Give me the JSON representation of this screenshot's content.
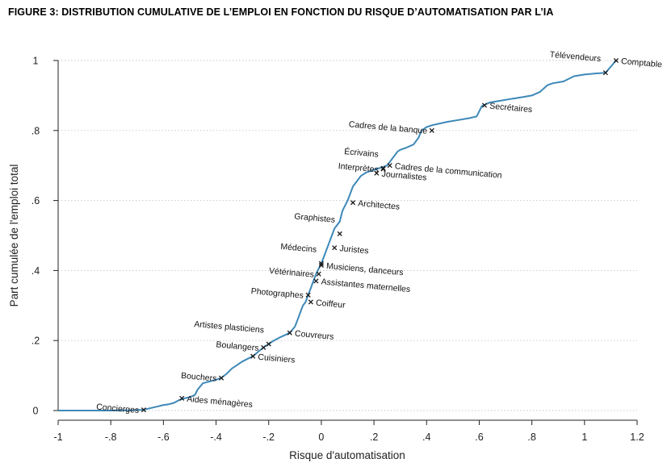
{
  "figure_title": "FIGURE 3: DISTRIBUTION CUMULATIVE DE L’EMPLOI EN FONCTION DU RISQUE D’AUTOMATISATION PAR L’IA",
  "colors": {
    "line": "#3d88b8",
    "grid": "#c8c8c8",
    "axis": "#222222",
    "marker": "#1a1a1a"
  },
  "chart_data": {
    "type": "line",
    "title": "FIGURE 3: DISTRIBUTION CUMULATIVE DE L’EMPLOI EN FONCTION DU RISQUE D’AUTOMATISATION PAR L’IA",
    "xlabel": "Risque d'automatisation",
    "ylabel": "Part cumulée de l'emploi total",
    "xlim": [
      -1,
      1.2
    ],
    "ylim": [
      0,
      1
    ],
    "x_ticks": [
      {
        "value": -1,
        "label": "-1"
      },
      {
        "value": -0.8,
        "label": "-.8"
      },
      {
        "value": -0.6,
        "label": "-.6"
      },
      {
        "value": -0.4,
        "label": "-.4"
      },
      {
        "value": -0.2,
        "label": "-.2"
      },
      {
        "value": 0,
        "label": "0"
      },
      {
        "value": 0.2,
        "label": ".2"
      },
      {
        "value": 0.4,
        "label": ".4"
      },
      {
        "value": 0.6,
        "label": ".6"
      },
      {
        "value": 0.8,
        "label": ".8"
      },
      {
        "value": 1,
        "label": "1"
      },
      {
        "value": 1.2,
        "label": "1.2"
      }
    ],
    "y_ticks": [
      {
        "value": 0,
        "label": "0"
      },
      {
        "value": 0.2,
        "label": ".2"
      },
      {
        "value": 0.4,
        "label": ".4"
      },
      {
        "value": 0.6,
        "label": ".6"
      },
      {
        "value": 0.8,
        "label": ".8"
      },
      {
        "value": 1,
        "label": "1"
      }
    ],
    "grid": "horizontal dotted",
    "series": [
      {
        "x": [
          -1,
          -0.9,
          -0.8,
          -0.72,
          -0.68,
          -0.66,
          -0.62,
          -0.6,
          -0.58,
          -0.56,
          -0.54,
          -0.52,
          -0.5,
          -0.48,
          -0.47,
          -0.45,
          -0.43,
          -0.42,
          -0.4,
          -0.38,
          -0.36,
          -0.34,
          -0.32,
          -0.3,
          -0.28,
          -0.26,
          -0.24,
          -0.22,
          -0.2,
          -0.18,
          -0.16,
          -0.14,
          -0.12,
          -0.1,
          -0.09,
          -0.08,
          -0.07,
          -0.06,
          -0.05,
          -0.04,
          -0.03,
          -0.02,
          -0.01,
          0,
          0.01,
          0.02,
          0.03,
          0.04,
          0.05,
          0.06,
          0.07,
          0.08,
          0.09,
          0.1,
          0.11,
          0.12,
          0.13,
          0.14,
          0.15,
          0.17,
          0.19,
          0.21,
          0.23,
          0.25,
          0.27,
          0.29,
          0.3,
          0.32,
          0.35,
          0.37,
          0.38,
          0.4,
          0.42,
          0.45,
          0.48,
          0.52,
          0.56,
          0.59,
          0.61,
          0.64,
          0.68,
          0.72,
          0.76,
          0.8,
          0.83,
          0.86,
          0.88,
          0.92,
          0.96,
          1,
          1.04,
          1.08,
          1.12
        ],
        "y": [
          0,
          0,
          0,
          0.001,
          0.002,
          0.005,
          0.012,
          0.016,
          0.018,
          0.022,
          0.03,
          0.035,
          0.038,
          0.045,
          0.06,
          0.078,
          0.082,
          0.084,
          0.088,
          0.093,
          0.105,
          0.12,
          0.13,
          0.14,
          0.148,
          0.155,
          0.168,
          0.18,
          0.19,
          0.2,
          0.208,
          0.215,
          0.222,
          0.24,
          0.26,
          0.28,
          0.3,
          0.31,
          0.33,
          0.35,
          0.37,
          0.39,
          0.405,
          0.42,
          0.44,
          0.46,
          0.48,
          0.5,
          0.52,
          0.53,
          0.54,
          0.57,
          0.585,
          0.6,
          0.62,
          0.64,
          0.65,
          0.66,
          0.67,
          0.68,
          0.685,
          0.69,
          0.695,
          0.7,
          0.72,
          0.74,
          0.745,
          0.75,
          0.76,
          0.78,
          0.8,
          0.81,
          0.815,
          0.82,
          0.825,
          0.83,
          0.835,
          0.84,
          0.87,
          0.88,
          0.885,
          0.89,
          0.895,
          0.9,
          0.91,
          0.93,
          0.935,
          0.94,
          0.955,
          0.96,
          0.963,
          0.965,
          1.0
        ]
      }
    ],
    "annotations": [
      {
        "label": "Concierges",
        "x": -0.675,
        "y": 0.002,
        "side": "left",
        "rot": 5
      },
      {
        "label": "Aides ménagères",
        "x": -0.53,
        "y": 0.035,
        "side": "right",
        "rot": 5
      },
      {
        "label": "Bouchers",
        "x": -0.38,
        "y": 0.093,
        "side": "left",
        "rot": 5
      },
      {
        "label": "Cuisiniers",
        "x": -0.26,
        "y": 0.155,
        "side": "right",
        "rot": 5
      },
      {
        "label": "Boulangers",
        "x": -0.22,
        "y": 0.18,
        "side": "left",
        "rot": 5
      },
      {
        "label": "Artistes plasticiens",
        "x": -0.2,
        "y": 0.19,
        "side": "left",
        "rot": 5,
        "above": true
      },
      {
        "label": "Couvreurs",
        "x": -0.12,
        "y": 0.222,
        "side": "right",
        "rot": 5
      },
      {
        "label": "Coiffeur",
        "x": -0.04,
        "y": 0.31,
        "side": "right",
        "rot": 5
      },
      {
        "label": "Photographes",
        "x": -0.05,
        "y": 0.33,
        "side": "left",
        "rot": 5
      },
      {
        "label": "Assistantes maternelles",
        "x": -0.02,
        "y": 0.37,
        "side": "right",
        "rot": 5
      },
      {
        "label": "Vétérinaires",
        "x": -0.01,
        "y": 0.39,
        "side": "left",
        "rot": 5
      },
      {
        "label": "Musiciens, danceurs",
        "x": 0.0,
        "y": 0.415,
        "side": "right",
        "rot": 5
      },
      {
        "label": "Médecins",
        "x": 0.0,
        "y": 0.42,
        "side": "left",
        "rot": 5,
        "above": true
      },
      {
        "label": "Juristes",
        "x": 0.05,
        "y": 0.465,
        "side": "right",
        "rot": 5
      },
      {
        "label": "Graphistes",
        "x": 0.07,
        "y": 0.505,
        "side": "left",
        "rot": 5,
        "above": true
      },
      {
        "label": "Architectes",
        "x": 0.12,
        "y": 0.594,
        "side": "right",
        "rot": 5
      },
      {
        "label": "Journalistes",
        "x": 0.21,
        "y": 0.678,
        "side": "right",
        "rot": 5
      },
      {
        "label": "Interprètes",
        "x": 0.235,
        "y": 0.69,
        "side": "left",
        "rot": 5
      },
      {
        "label": "Écrivains",
        "x": 0.235,
        "y": 0.692,
        "side": "left",
        "rot": 5,
        "above": true
      },
      {
        "label": "Cadres de la communication",
        "x": 0.26,
        "y": 0.7,
        "side": "right",
        "rot": 5
      },
      {
        "label": "Cadres de la banque",
        "x": 0.42,
        "y": 0.8,
        "side": "left",
        "rot": 5
      },
      {
        "label": "Secrétaires",
        "x": 0.62,
        "y": 0.872,
        "side": "right",
        "rot": 5
      },
      {
        "label": "Télévendeurs",
        "x": 1.08,
        "y": 0.965,
        "side": "left",
        "rot": 5,
        "above": true
      },
      {
        "label": "Comptable",
        "x": 1.12,
        "y": 1.0,
        "side": "right",
        "rot": 5
      }
    ]
  }
}
